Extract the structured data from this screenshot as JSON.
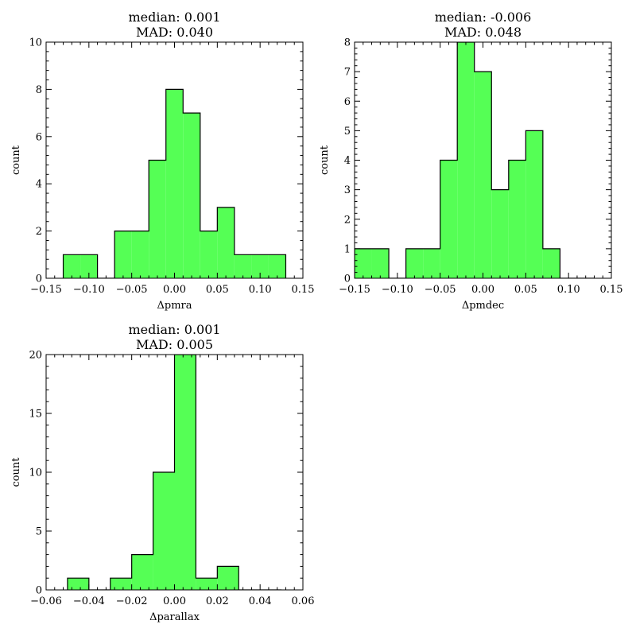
{
  "chart_data": [
    {
      "type": "bar",
      "histogram": true,
      "title_lines": [
        "median: 0.001",
        "MAD: 0.040"
      ],
      "xlabel": "Δpmra",
      "ylabel": "count",
      "xlim": [
        -0.15,
        0.15
      ],
      "ylim": [
        0,
        10
      ],
      "xticks": [
        -0.15,
        -0.1,
        -0.05,
        0.0,
        0.05,
        0.1,
        0.15
      ],
      "xtick_labels": [
        "−0.15",
        "−0.10",
        "−0.05",
        "0.00",
        "0.05",
        "0.10",
        "0.15"
      ],
      "yticks": [
        0,
        2,
        4,
        6,
        8,
        10
      ],
      "ytick_labels": [
        "0",
        "2",
        "4",
        "6",
        "8",
        "10"
      ],
      "bin_edges": [
        -0.13,
        -0.11,
        -0.09,
        -0.07,
        -0.05,
        -0.03,
        -0.01,
        0.01,
        0.03,
        0.05,
        0.07,
        0.09,
        0.11,
        0.13
      ],
      "counts": [
        1,
        1,
        0,
        2,
        2,
        5,
        8,
        7,
        2,
        3,
        1,
        1,
        1
      ],
      "fill_color": "#55ff55",
      "edge_color": "#000000"
    },
    {
      "type": "bar",
      "histogram": true,
      "title_lines": [
        "median: -0.006",
        "MAD: 0.048"
      ],
      "xlabel": "Δpmdec",
      "ylabel": "count",
      "xlim": [
        -0.15,
        0.15
      ],
      "ylim": [
        0,
        8
      ],
      "xticks": [
        -0.15,
        -0.1,
        -0.05,
        0.0,
        0.05,
        0.1,
        0.15
      ],
      "xtick_labels": [
        "−0.15",
        "−0.10",
        "−0.05",
        "0.00",
        "0.05",
        "0.10",
        "0.15"
      ],
      "yticks": [
        0,
        1,
        2,
        3,
        4,
        5,
        6,
        7,
        8
      ],
      "ytick_labels": [
        "0",
        "1",
        "2",
        "3",
        "4",
        "5",
        "6",
        "7",
        "8"
      ],
      "bin_edges": [
        -0.15,
        -0.13,
        -0.11,
        -0.09,
        -0.07,
        -0.05,
        -0.03,
        -0.01,
        0.01,
        0.03,
        0.05,
        0.07,
        0.09,
        0.11,
        0.13
      ],
      "counts": [
        1,
        1,
        0,
        1,
        1,
        4,
        8,
        7,
        3,
        4,
        5,
        1,
        0,
        0
      ],
      "fill_color": "#55ff55",
      "edge_color": "#000000"
    },
    {
      "type": "bar",
      "histogram": true,
      "title_lines": [
        "median: 0.001",
        "MAD: 0.005"
      ],
      "xlabel": "Δparallax",
      "ylabel": "count",
      "xlim": [
        -0.06,
        0.06
      ],
      "ylim": [
        0,
        20
      ],
      "xticks": [
        -0.06,
        -0.04,
        -0.02,
        0.0,
        0.02,
        0.04,
        0.06
      ],
      "xtick_labels": [
        "−0.06",
        "−0.04",
        "−0.02",
        "0.00",
        "0.02",
        "0.04",
        "0.06"
      ],
      "yticks": [
        0,
        5,
        10,
        15,
        20
      ],
      "ytick_labels": [
        "0",
        "5",
        "10",
        "15",
        "20"
      ],
      "bin_edges": [
        -0.05,
        -0.04,
        -0.03,
        -0.02,
        -0.01,
        0.0,
        0.01,
        0.02,
        0.03,
        0.04,
        0.05
      ],
      "counts": [
        1,
        0,
        1,
        3,
        10,
        20,
        1,
        2,
        0,
        0
      ],
      "fill_color": "#55ff55",
      "edge_color": "#000000"
    }
  ]
}
